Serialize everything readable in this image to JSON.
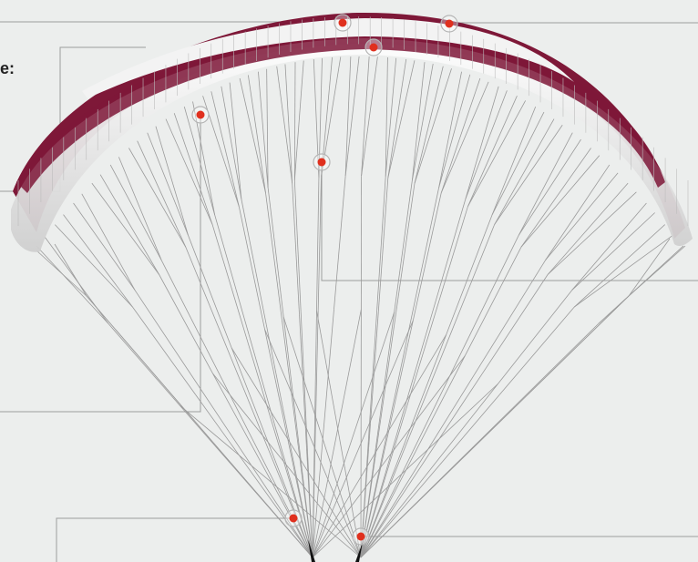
{
  "labels": {
    "cut_off_heading": "e:"
  },
  "colors": {
    "background": "#eceeed",
    "canopy_maroon": "#7e1838",
    "canopy_white": "#f3f3f3",
    "line_grey": "#9a9a9a",
    "leader_grey": "#9d9d9d",
    "hotspot_red": "#e0301e",
    "riser_black": "#111111"
  },
  "icons": [
    "hotspot-marker-icon"
  ],
  "hotspots": [
    {
      "id": "top-surface-1"
    },
    {
      "id": "top-surface-2"
    },
    {
      "id": "leading-edge"
    },
    {
      "id": "upper-lines-left"
    },
    {
      "id": "upper-lines-center"
    },
    {
      "id": "riser-left"
    },
    {
      "id": "riser-right"
    }
  ]
}
